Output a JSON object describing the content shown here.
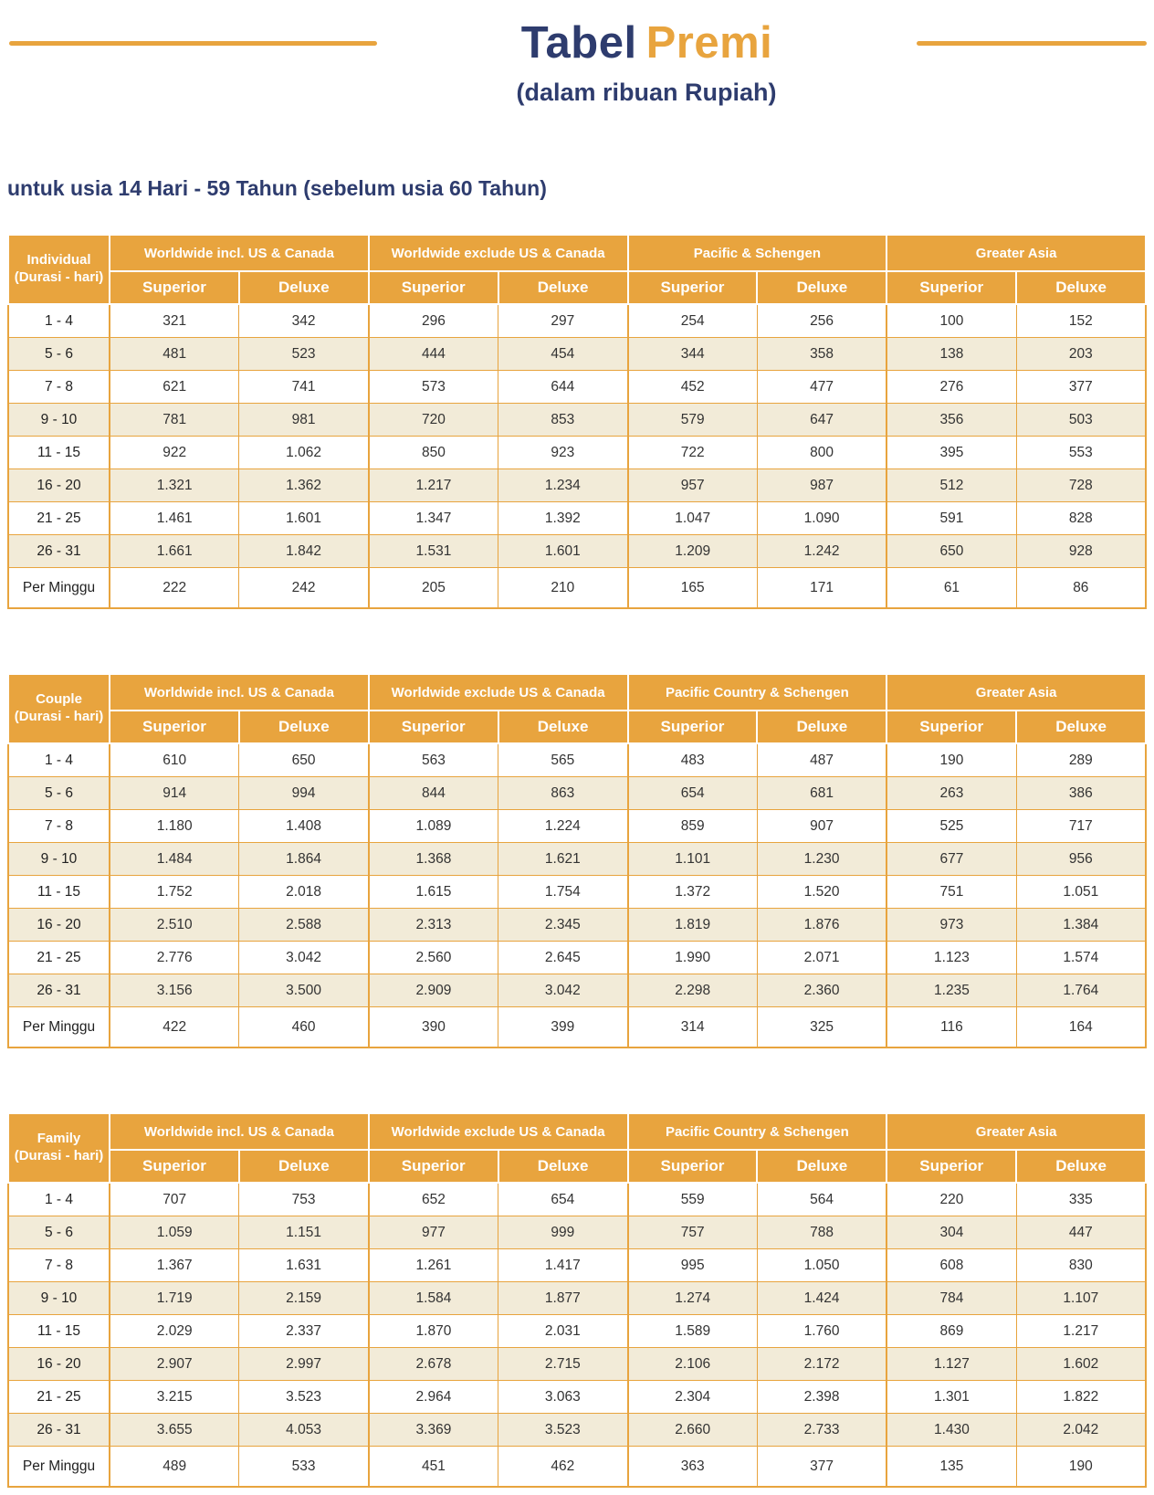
{
  "header": {
    "title_word1": "Tabel",
    "title_word2": "Premi",
    "subtitle": "(dalam ribuan Rupiah)",
    "age_note": "untuk usia 14 Hari - 59 Tahun (sebelum usia 60 Tahun)"
  },
  "colors": {
    "gold": "#E8A43E",
    "navy": "#2E3C6E",
    "stripe_cream": "#F2EBD8",
    "cell_text": "#333333",
    "header_text": "#FFFFFF"
  },
  "shared": {
    "corner_subtitle": "(Durasi - hari)",
    "subcolumns": [
      "Superior",
      "Deluxe"
    ]
  },
  "tables": [
    {
      "corner_title": "Individual",
      "regions": [
        "Worldwide incl. US & Canada",
        "Worldwide exclude US & Canada",
        "Pacific & Schengen",
        "Greater Asia"
      ],
      "rows": [
        {
          "duration": "1 - 4",
          "values": [
            "321",
            "342",
            "296",
            "297",
            "254",
            "256",
            "100",
            "152"
          ]
        },
        {
          "duration": "5 - 6",
          "values": [
            "481",
            "523",
            "444",
            "454",
            "344",
            "358",
            "138",
            "203"
          ]
        },
        {
          "duration": "7 - 8",
          "values": [
            "621",
            "741",
            "573",
            "644",
            "452",
            "477",
            "276",
            "377"
          ]
        },
        {
          "duration": "9 - 10",
          "values": [
            "781",
            "981",
            "720",
            "853",
            "579",
            "647",
            "356",
            "503"
          ]
        },
        {
          "duration": "11 - 15",
          "values": [
            "922",
            "1.062",
            "850",
            "923",
            "722",
            "800",
            "395",
            "553"
          ]
        },
        {
          "duration": "16 - 20",
          "values": [
            "1.321",
            "1.362",
            "1.217",
            "1.234",
            "957",
            "987",
            "512",
            "728"
          ]
        },
        {
          "duration": "21 - 25",
          "values": [
            "1.461",
            "1.601",
            "1.347",
            "1.392",
            "1.047",
            "1.090",
            "591",
            "828"
          ]
        },
        {
          "duration": "26 - 31",
          "values": [
            "1.661",
            "1.842",
            "1.531",
            "1.601",
            "1.209",
            "1.242",
            "650",
            "928"
          ]
        },
        {
          "duration": "Per Minggu",
          "values": [
            "222",
            "242",
            "205",
            "210",
            "165",
            "171",
            "61",
            "86"
          ]
        }
      ]
    },
    {
      "corner_title": "Couple",
      "regions": [
        "Worldwide incl. US & Canada",
        "Worldwide exclude US & Canada",
        "Pacific Country & Schengen",
        "Greater Asia"
      ],
      "rows": [
        {
          "duration": "1 - 4",
          "values": [
            "610",
            "650",
            "563",
            "565",
            "483",
            "487",
            "190",
            "289"
          ]
        },
        {
          "duration": "5 - 6",
          "values": [
            "914",
            "994",
            "844",
            "863",
            "654",
            "681",
            "263",
            "386"
          ]
        },
        {
          "duration": "7 - 8",
          "values": [
            "1.180",
            "1.408",
            "1.089",
            "1.224",
            "859",
            "907",
            "525",
            "717"
          ]
        },
        {
          "duration": "9 - 10",
          "values": [
            "1.484",
            "1.864",
            "1.368",
            "1.621",
            "1.101",
            "1.230",
            "677",
            "956"
          ]
        },
        {
          "duration": "11 - 15",
          "values": [
            "1.752",
            "2.018",
            "1.615",
            "1.754",
            "1.372",
            "1.520",
            "751",
            "1.051"
          ]
        },
        {
          "duration": "16 - 20",
          "values": [
            "2.510",
            "2.588",
            "2.313",
            "2.345",
            "1.819",
            "1.876",
            "973",
            "1.384"
          ]
        },
        {
          "duration": "21 - 25",
          "values": [
            "2.776",
            "3.042",
            "2.560",
            "2.645",
            "1.990",
            "2.071",
            "1.123",
            "1.574"
          ]
        },
        {
          "duration": "26 - 31",
          "values": [
            "3.156",
            "3.500",
            "2.909",
            "3.042",
            "2.298",
            "2.360",
            "1.235",
            "1.764"
          ]
        },
        {
          "duration": "Per Minggu",
          "values": [
            "422",
            "460",
            "390",
            "399",
            "314",
            "325",
            "116",
            "164"
          ]
        }
      ]
    },
    {
      "corner_title": "Family",
      "regions": [
        "Worldwide incl. US & Canada",
        "Worldwide exclude US & Canada",
        "Pacific Country & Schengen",
        "Greater Asia"
      ],
      "rows": [
        {
          "duration": "1 - 4",
          "values": [
            "707",
            "753",
            "652",
            "654",
            "559",
            "564",
            "220",
            "335"
          ]
        },
        {
          "duration": "5 - 6",
          "values": [
            "1.059",
            "1.151",
            "977",
            "999",
            "757",
            "788",
            "304",
            "447"
          ]
        },
        {
          "duration": "7 - 8",
          "values": [
            "1.367",
            "1.631",
            "1.261",
            "1.417",
            "995",
            "1.050",
            "608",
            "830"
          ]
        },
        {
          "duration": "9 - 10",
          "values": [
            "1.719",
            "2.159",
            "1.584",
            "1.877",
            "1.274",
            "1.424",
            "784",
            "1.107"
          ]
        },
        {
          "duration": "11 - 15",
          "values": [
            "2.029",
            "2.337",
            "1.870",
            "2.031",
            "1.589",
            "1.760",
            "869",
            "1.217"
          ]
        },
        {
          "duration": "16 - 20",
          "values": [
            "2.907",
            "2.997",
            "2.678",
            "2.715",
            "2.106",
            "2.172",
            "1.127",
            "1.602"
          ]
        },
        {
          "duration": "21 - 25",
          "values": [
            "3.215",
            "3.523",
            "2.964",
            "3.063",
            "2.304",
            "2.398",
            "1.301",
            "1.822"
          ]
        },
        {
          "duration": "26 - 31",
          "values": [
            "3.655",
            "4.053",
            "3.369",
            "3.523",
            "2.660",
            "2.733",
            "1.430",
            "2.042"
          ]
        },
        {
          "duration": "Per Minggu",
          "values": [
            "489",
            "533",
            "451",
            "462",
            "363",
            "377",
            "135",
            "190"
          ]
        }
      ]
    }
  ]
}
